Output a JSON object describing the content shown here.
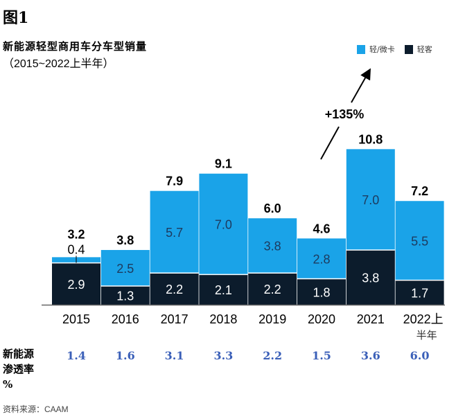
{
  "figure_label": "图1",
  "title": "新能源轻型商用车分车型销量",
  "subtitle": "（2015~2022上半年）",
  "legend": [
    {
      "label": "轻/微卡",
      "color": "#1aa3e8"
    },
    {
      "label": "轻客",
      "color": "#0c1c2c"
    }
  ],
  "annotation": "+135%",
  "penetration_label": [
    "新能源",
    "渗透率",
    "%"
  ],
  "penetration_values": [
    "1.4",
    "1.6",
    "3.1",
    "3.3",
    "2.2",
    "1.5",
    "3.6",
    "6.0"
  ],
  "source": "资料来源：CAAM",
  "chart_data": {
    "type": "bar",
    "stacked": true,
    "title": "新能源轻型商用车分车型销量（2015~2022上半年）",
    "xlabel": "",
    "ylabel": "",
    "categories": [
      "2015",
      "2016",
      "2017",
      "2018",
      "2019",
      "2020",
      "2021",
      "2022上半年"
    ],
    "category_lines": [
      [
        "2015"
      ],
      [
        "2016"
      ],
      [
        "2017"
      ],
      [
        "2018"
      ],
      [
        "2019"
      ],
      [
        "2020"
      ],
      [
        "2021"
      ],
      [
        "2022上",
        "半年"
      ]
    ],
    "series": [
      {
        "name": "轻客",
        "color": "#0c1c2c",
        "values": [
          2.9,
          1.3,
          2.2,
          2.1,
          2.2,
          1.8,
          3.8,
          1.7
        ]
      },
      {
        "name": "轻/微卡",
        "color": "#1aa3e8",
        "values": [
          0.4,
          2.5,
          5.7,
          7.0,
          3.8,
          2.8,
          7.0,
          5.5
        ]
      }
    ],
    "totals": [
      3.2,
      3.8,
      7.9,
      9.1,
      6.0,
      4.6,
      10.8,
      7.2
    ],
    "ylim": [
      0,
      11
    ],
    "grid": false,
    "legend_position": "top-right",
    "annotations": [
      {
        "text": "+135%",
        "from": "2020",
        "to": "2021",
        "type": "arrow"
      }
    ]
  }
}
